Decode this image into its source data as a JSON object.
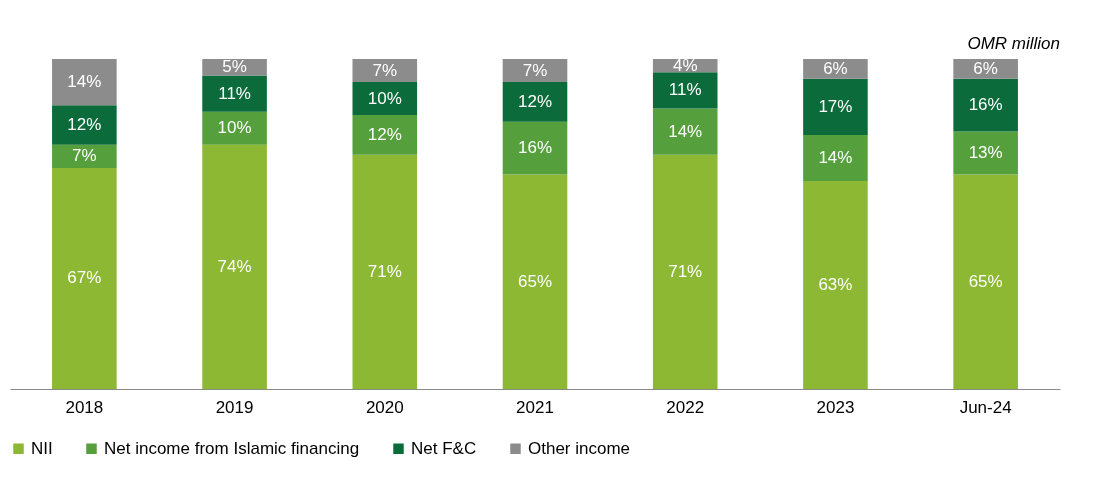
{
  "chart_data": {
    "type": "bar",
    "stacked": true,
    "legend": "bottom",
    "marker": "square",
    "grid": false,
    "categories": [
      "2018",
      "2019",
      "2020",
      "2021",
      "2022",
      "2023",
      "Jun-24"
    ],
    "tick_labels": "x",
    "annotations": [
      "OMR million"
    ],
    "series": [
      {
        "name": "NII",
        "color": "#8db833",
        "values": [
          67,
          74,
          71,
          65,
          71,
          63,
          65
        ],
        "value_labels": [
          "67%",
          "74%",
          "71%",
          "65%",
          "71%",
          "63%",
          "65%"
        ]
      },
      {
        "name": "Net income from Islamic financing",
        "color": "#55a03c",
        "values": [
          7,
          10,
          12,
          16,
          14,
          14,
          13
        ],
        "value_labels": [
          "7%",
          "10%",
          "12%",
          "16%",
          "14%",
          "14%",
          "13%"
        ]
      },
      {
        "name": "Net F&C",
        "color": "#0b6b3a",
        "values": [
          12,
          11,
          10,
          12,
          11,
          17,
          16
        ],
        "value_labels": [
          "12%",
          "11%",
          "10%",
          "12%",
          "11%",
          "17%",
          "16%"
        ]
      },
      {
        "name": "Other income",
        "color": "#8c8c8c",
        "values": [
          14,
          5,
          7,
          7,
          4,
          6,
          6
        ],
        "value_labels": [
          "14%",
          "5%",
          "7%",
          "7%",
          "4%",
          "6%",
          "6%"
        ]
      }
    ]
  }
}
